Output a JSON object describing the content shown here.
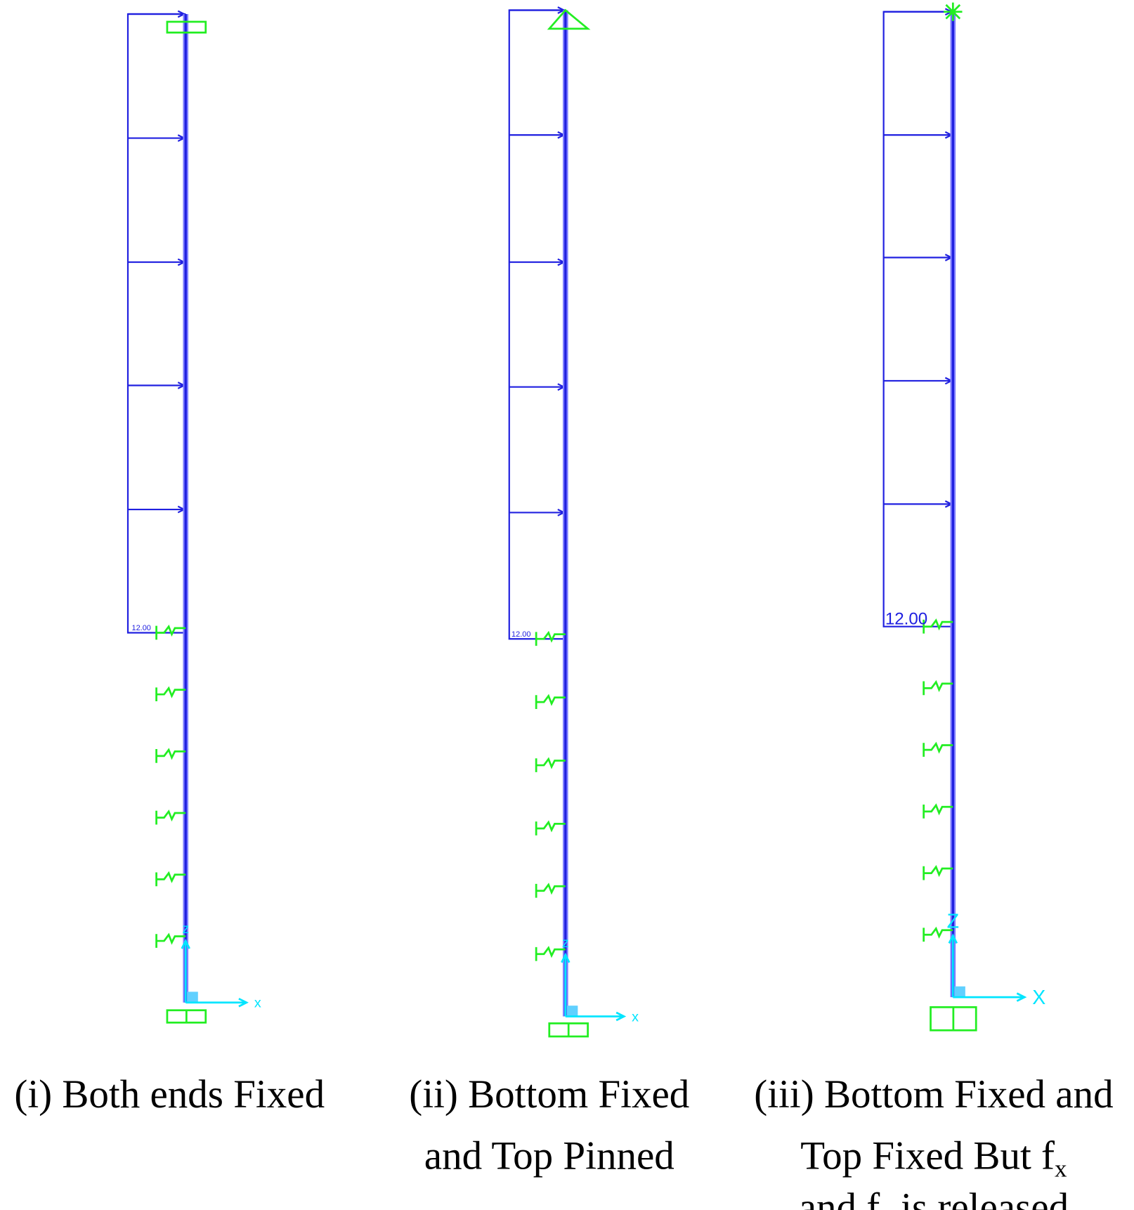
{
  "panels": [
    {
      "load_label": "12.00",
      "axis_x": "x",
      "axis_z": "z",
      "caption": [
        {
          "text": "(i) Both ends Fixed"
        }
      ]
    },
    {
      "load_label": "12.00",
      "axis_x": "x",
      "axis_z": "z",
      "caption": [
        {
          "text": "(ii) Bottom Fixed"
        },
        {
          "text": "and Top Pinned"
        }
      ]
    },
    {
      "load_label": "12.00",
      "axis_x": "X",
      "axis_z": "Z",
      "caption": [
        {
          "text": "(iii) Bottom Fixed and"
        },
        {
          "text": "Top Fixed But f",
          "sub": "x"
        },
        {
          "text": "and  f",
          "sub": "z",
          "tail": " is released"
        }
      ]
    }
  ]
}
